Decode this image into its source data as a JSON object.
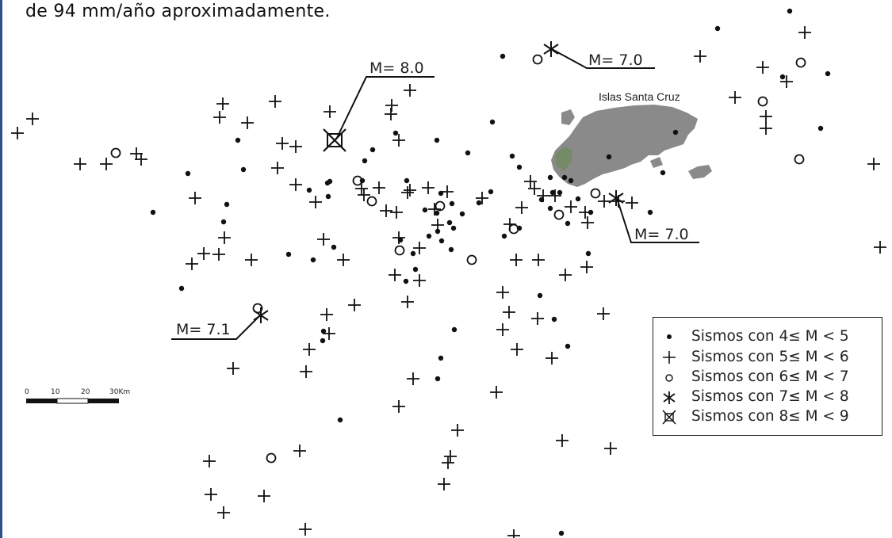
{
  "header": {
    "text": "de 94 mm/año aproximadamente."
  },
  "map": {
    "island_label": "Islas Santa Cruz",
    "callouts": [
      {
        "id": "m80",
        "text": "M= 8.0"
      },
      {
        "id": "m70a",
        "text": "M= 7.0"
      },
      {
        "id": "m70b",
        "text": "M= 7.0"
      },
      {
        "id": "m71",
        "text": "M= 7.1"
      }
    ],
    "colors": {
      "island": "#8c8c8c",
      "island_green": "#6f8f5f",
      "symbol": "#111111"
    }
  },
  "scale": {
    "labels": [
      "0",
      "10",
      "20",
      "30Km"
    ]
  },
  "legend": {
    "items": [
      {
        "symbol": "dot",
        "label": "Sismos con 4≤ M < 5"
      },
      {
        "symbol": "plus",
        "label": "Sismos con 5≤ M < 6"
      },
      {
        "symbol": "circle",
        "label": "Sismos con 6≤ M < 7"
      },
      {
        "symbol": "asterisk",
        "label": "Sismos con 7≤ M < 8"
      },
      {
        "symbol": "cross-box",
        "label": "Sismos con 8≤ M < 9"
      }
    ]
  }
}
